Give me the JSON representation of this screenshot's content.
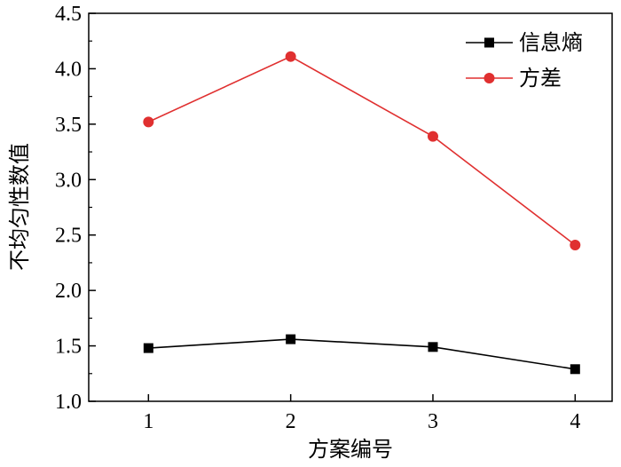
{
  "chart_data": {
    "type": "line",
    "title": "",
    "xlabel": "方案编号",
    "ylabel": "不均匀性数值",
    "x": [
      1,
      2,
      3,
      4
    ],
    "xticks": [
      "1",
      "2",
      "3",
      "4"
    ],
    "yticks": [
      "1.0",
      "1.5",
      "2.0",
      "2.5",
      "3.0",
      "3.5",
      "4.0",
      "4.5"
    ],
    "xlim": [
      0.58,
      4.26
    ],
    "ylim": [
      1.0,
      4.5
    ],
    "grid": false,
    "legend_position": "top-right",
    "series": [
      {
        "name": "信息熵",
        "values": [
          1.48,
          1.56,
          1.49,
          1.29
        ],
        "color": "#000000",
        "marker": "square"
      },
      {
        "name": "方差",
        "values": [
          3.52,
          4.11,
          3.39,
          2.41
        ],
        "color": "#e03030",
        "marker": "circle"
      }
    ]
  }
}
